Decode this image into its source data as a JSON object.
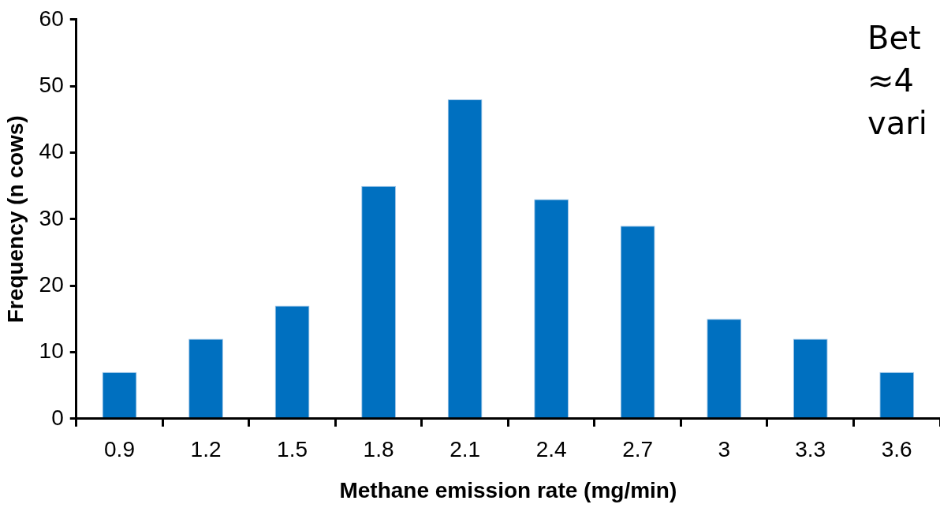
{
  "chart_data": {
    "type": "bar",
    "xlabel": "Methane emission rate (mg/min)",
    "ylabel": "Frequency (n cows)",
    "categories": [
      "0.9",
      "1.2",
      "1.5",
      "1.8",
      "2.1",
      "2.4",
      "2.7",
      "3",
      "3.3",
      "3.6"
    ],
    "values": [
      7,
      12,
      17,
      35,
      48,
      33,
      29,
      15,
      12,
      7
    ],
    "color": "#0070c0",
    "ylim": [
      0,
      60
    ],
    "yticks": [
      0,
      10,
      20,
      30,
      40,
      50,
      60
    ],
    "grid": false,
    "legend": false,
    "annotations": [
      "Bet",
      "≈4",
      "vari"
    ]
  }
}
